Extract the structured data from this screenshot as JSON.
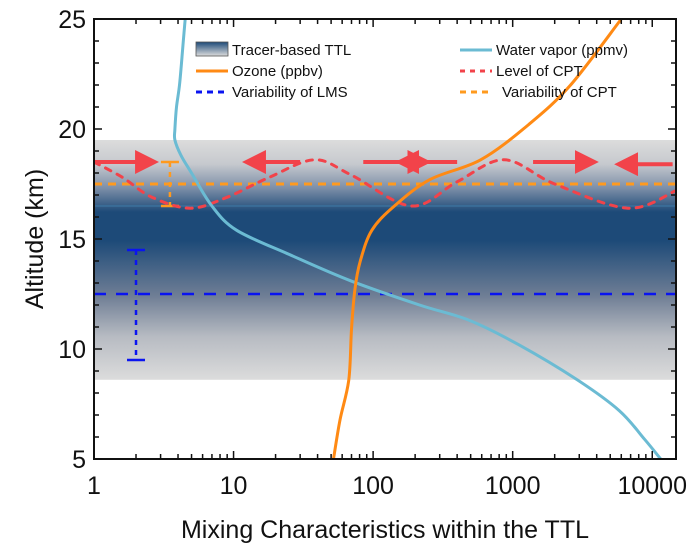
{
  "chart_data": {
    "type": "line",
    "title": "",
    "xlabel": "Mixing Characteristics within the TTL",
    "ylabel": "Altitude (km)",
    "xscale": "log",
    "xlim": [
      1,
      14800
    ],
    "ylim": [
      5,
      25
    ],
    "xticks": [
      1,
      10,
      100,
      1000,
      10000
    ],
    "xtick_labels": [
      "1",
      "10",
      "100",
      "1000",
      "10000"
    ],
    "yticks": [
      5,
      10,
      15,
      20,
      25
    ],
    "ytick_labels": [
      "5",
      "10",
      "15",
      "20",
      "25"
    ],
    "grid": false,
    "legend_position": "top",
    "colors": {
      "water_vapor": "#6bbbd3",
      "ozone": "#ff8a14",
      "cpt_level": "#f2434a",
      "cpt_variability": "#ff9a1e",
      "lms_variability": "#0a14f0",
      "ttl_dark": "#1a4a78",
      "ttl_light": "#dcdcdc"
    },
    "ttl_band": {
      "name": "Tracer-based TTL",
      "bottom": 8.6,
      "top": 19.5,
      "peak": 16.5
    },
    "series": [
      {
        "name": "Water vapor (ppmv)",
        "style": "solid",
        "x": [
          4.5,
          4.3,
          4.1,
          3.9,
          3.8,
          3.8,
          4.2,
          5.0,
          7.0,
          10.5,
          25,
          69,
          215,
          490,
          1100,
          2900,
          5800,
          8800,
          11500
        ],
        "y": [
          25,
          23.5,
          22,
          21,
          20,
          19.5,
          18.8,
          18,
          16.5,
          15.4,
          14.3,
          13.1,
          12,
          11.3,
          10.2,
          8.6,
          7.2,
          5.9,
          5
        ]
      },
      {
        "name": "Ozone (ppbv)",
        "style": "solid",
        "x": [
          52,
          58,
          67,
          70,
          74,
          81,
          98,
          142,
          255,
          590,
          1300,
          2600,
          6000
        ],
        "y": [
          5,
          6.8,
          8.6,
          10.9,
          12.7,
          14,
          15.4,
          16.5,
          17.7,
          18.6,
          20.2,
          22,
          25
        ]
      },
      {
        "name": "Level of CPT",
        "style": "dotted",
        "x": [
          1,
          1.6,
          2.6,
          4.9,
          9,
          18,
          38,
          70,
          188,
          400,
          870,
          2000,
          6700,
          14800
        ],
        "y": [
          18.5,
          17.8,
          16.9,
          16.4,
          16.9,
          17.8,
          18.6,
          17.9,
          16.5,
          17.6,
          18.6,
          17.5,
          16.4,
          17.2
        ]
      },
      {
        "name": "Variability of CPT",
        "style": "dashed",
        "hline": 17.5,
        "errorbar": {
          "x": 3.5,
          "low": 16.5,
          "high": 18.5
        }
      },
      {
        "name": "Variability of LMS",
        "style": "dashed",
        "hline": 12.5,
        "errorbar": {
          "x": 2.0,
          "low": 9.5,
          "high": 14.5
        }
      }
    ],
    "arrows": [
      {
        "from": 1.0,
        "to": 2.4,
        "y": 18.5,
        "direction": "right"
      },
      {
        "from": 30,
        "to": 14,
        "y": 18.5,
        "direction": "left"
      },
      {
        "from": 85,
        "to": 215,
        "y": 18.5,
        "direction": "right"
      },
      {
        "from": 400,
        "to": 175,
        "y": 18.5,
        "direction": "left"
      },
      {
        "from": 1400,
        "to": 3400,
        "y": 18.5,
        "direction": "right"
      },
      {
        "from": 14000,
        "to": 6500,
        "y": 18.4,
        "direction": "left"
      }
    ],
    "legend": [
      {
        "label": "Tracer-based TTL",
        "kind": "box"
      },
      {
        "label": "Water vapor (ppmv)",
        "kind": "solid",
        "color_key": "water_vapor"
      },
      {
        "label": "Ozone (ppbv)",
        "kind": "solid",
        "color_key": "ozone"
      },
      {
        "label": "Level of CPT",
        "kind": "dotted",
        "color_key": "cpt_level"
      },
      {
        "label": "Variability of LMS",
        "kind": "dashed",
        "color_key": "lms_variability"
      },
      {
        "label": "Variability of CPT",
        "kind": "dashed",
        "color_key": "cpt_variability"
      }
    ]
  }
}
